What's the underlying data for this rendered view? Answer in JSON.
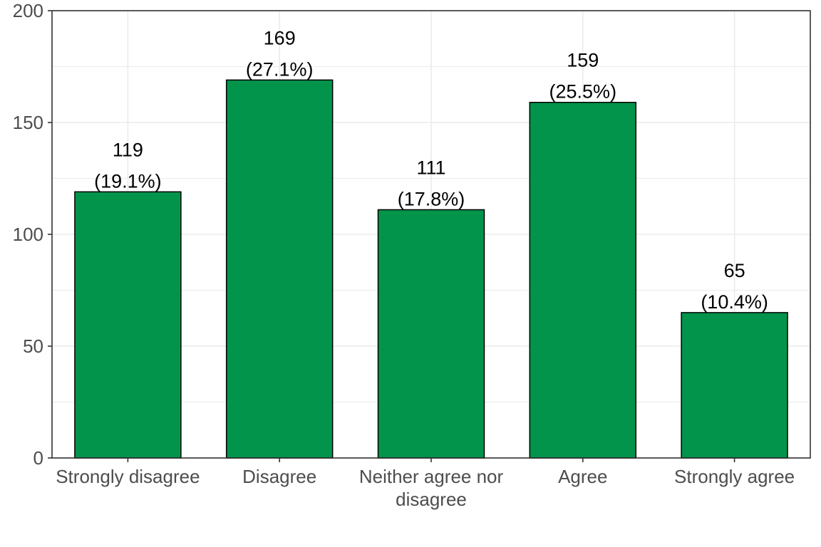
{
  "chart_data": {
    "type": "bar",
    "title": "",
    "xlabel": "",
    "ylabel": "",
    "categories": [
      [
        "Strongly disagree"
      ],
      [
        "Disagree"
      ],
      [
        "Neither agree nor",
        "disagree"
      ],
      [
        "Agree"
      ],
      [
        "Strongly agree"
      ]
    ],
    "values": [
      119,
      169,
      111,
      159,
      65
    ],
    "value_labels": [
      "119",
      "169",
      "111",
      "159",
      "65"
    ],
    "percent_labels": [
      "(19.1%)",
      "(27.1%)",
      "(17.8%)",
      "(25.5%)",
      "(10.4%)"
    ],
    "ylim": [
      0,
      200
    ],
    "yticks": [
      0,
      50,
      100,
      150,
      200
    ],
    "ytick_labels": [
      "0",
      "50",
      "100",
      "150",
      "200"
    ],
    "grid": true,
    "legend": "none",
    "bar_color": "#03944C",
    "bar_outline_color": "#000000",
    "grid_color": "#EBEBEB",
    "panel_border_color": "#333333"
  }
}
